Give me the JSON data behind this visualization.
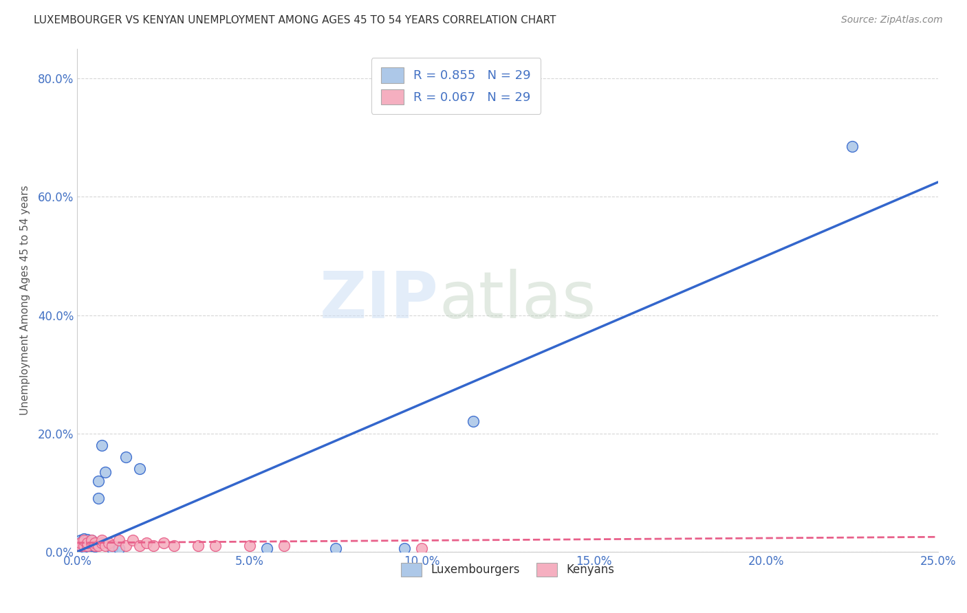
{
  "title": "LUXEMBOURGER VS KENYAN UNEMPLOYMENT AMONG AGES 45 TO 54 YEARS CORRELATION CHART",
  "source": "Source: ZipAtlas.com",
  "ylabel": "Unemployment Among Ages 45 to 54 years",
  "xlim": [
    0.0,
    0.25
  ],
  "ylim": [
    0.0,
    0.85
  ],
  "x_ticks": [
    0.0,
    0.05,
    0.1,
    0.15,
    0.2,
    0.25
  ],
  "y_ticks": [
    0.0,
    0.2,
    0.4,
    0.6,
    0.8
  ],
  "grid_color": "#cccccc",
  "background_color": "#ffffff",
  "lux_color": "#adc8e8",
  "ken_color": "#f5afc0",
  "lux_line_color": "#3366cc",
  "ken_line_color": "#e8608a",
  "watermark_zip": "ZIP",
  "watermark_atlas": "atlas",
  "legend_lux_label": "R = 0.855   N = 29",
  "legend_ken_label": "R = 0.067   N = 29",
  "legend_bottom_lux": "Luxembourgers",
  "legend_bottom_ken": "Kenyans",
  "tick_color": "#4472c4",
  "lux_line_x": [
    0.0,
    0.25
  ],
  "lux_line_y": [
    0.0,
    0.625
  ],
  "ken_line_x": [
    0.0,
    0.25
  ],
  "ken_line_y": [
    0.015,
    0.025
  ],
  "lux_x": [
    0.001,
    0.001,
    0.001,
    0.002,
    0.002,
    0.002,
    0.002,
    0.003,
    0.003,
    0.003,
    0.003,
    0.004,
    0.004,
    0.004,
    0.005,
    0.005,
    0.006,
    0.006,
    0.007,
    0.008,
    0.01,
    0.012,
    0.014,
    0.018,
    0.055,
    0.075,
    0.095,
    0.115,
    0.225
  ],
  "lux_y": [
    0.01,
    0.015,
    0.02,
    0.008,
    0.012,
    0.018,
    0.022,
    0.01,
    0.013,
    0.017,
    0.021,
    0.01,
    0.015,
    0.02,
    0.009,
    0.014,
    0.09,
    0.12,
    0.18,
    0.135,
    0.005,
    0.005,
    0.16,
    0.14,
    0.005,
    0.005,
    0.005,
    0.22,
    0.685
  ],
  "ken_x": [
    0.001,
    0.001,
    0.002,
    0.002,
    0.003,
    0.003,
    0.004,
    0.004,
    0.005,
    0.005,
    0.006,
    0.007,
    0.007,
    0.008,
    0.009,
    0.01,
    0.012,
    0.014,
    0.016,
    0.018,
    0.02,
    0.022,
    0.025,
    0.028,
    0.035,
    0.04,
    0.05,
    0.06,
    0.1
  ],
  "ken_y": [
    0.01,
    0.015,
    0.01,
    0.02,
    0.01,
    0.015,
    0.015,
    0.02,
    0.01,
    0.015,
    0.01,
    0.015,
    0.02,
    0.01,
    0.015,
    0.01,
    0.02,
    0.01,
    0.02,
    0.01,
    0.015,
    0.01,
    0.015,
    0.01,
    0.01,
    0.01,
    0.01,
    0.01,
    0.005
  ]
}
